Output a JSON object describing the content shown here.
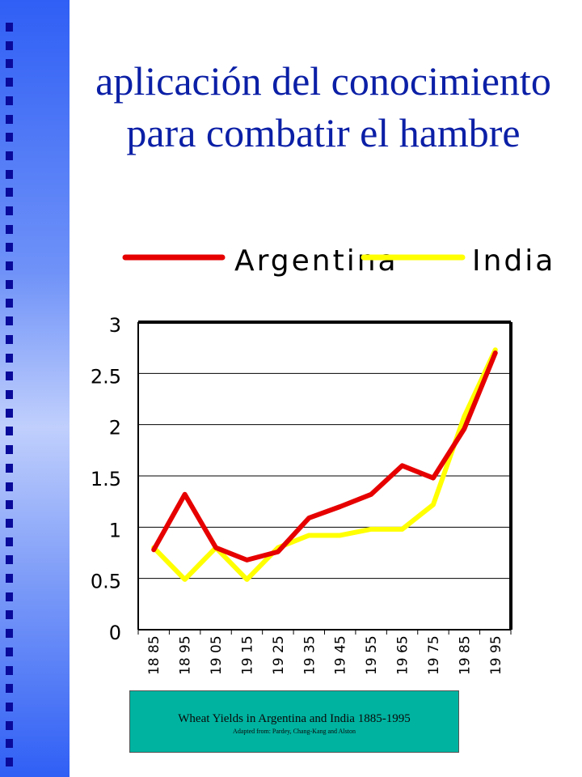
{
  "slide": {
    "title_line1": "aplicación del conocimiento",
    "title_line2": "para combatir el hambre"
  },
  "colors": {
    "sidebar": "#3a66f6",
    "sidebar_dots": "#0a0a9a",
    "title": "#0b1fa6",
    "argentina": "#e60000",
    "india": "#ffff00",
    "caption_bg": "#00b3a0"
  },
  "caption": {
    "main": "Wheat Yields in Argentina and India 1885-1995",
    "sub": "Adapted from: Pardey, Chang-Kang and Alston"
  },
  "chart_data": {
    "type": "line",
    "title": "",
    "xlabel": "",
    "ylabel": "",
    "ylim": [
      0,
      3
    ],
    "yticks": [
      0,
      0.5,
      1,
      1.5,
      2,
      2.5,
      3
    ],
    "ytick_labels": [
      "0",
      "0.5",
      "1",
      "1.5",
      "2",
      "2.5",
      "3"
    ],
    "grid": "horizontal",
    "legend": "top",
    "categories": [
      "18 85",
      "18 95",
      "19 05",
      "19 15",
      "19 25",
      "19 35",
      "19 45",
      "19 55",
      "19 65",
      "19 75",
      "19 85",
      "19 95"
    ],
    "series": [
      {
        "name": "Argentina",
        "color": "#e60000",
        "values": [
          0.78,
          1.32,
          0.8,
          0.68,
          0.76,
          1.09,
          1.2,
          1.32,
          1.6,
          1.48,
          1.96,
          2.7
        ]
      },
      {
        "name": "India",
        "color": "#ffff00",
        "values": [
          0.8,
          0.49,
          0.8,
          0.49,
          0.8,
          0.92,
          0.92,
          0.98,
          0.98,
          1.22,
          2.08,
          2.73
        ]
      }
    ]
  }
}
